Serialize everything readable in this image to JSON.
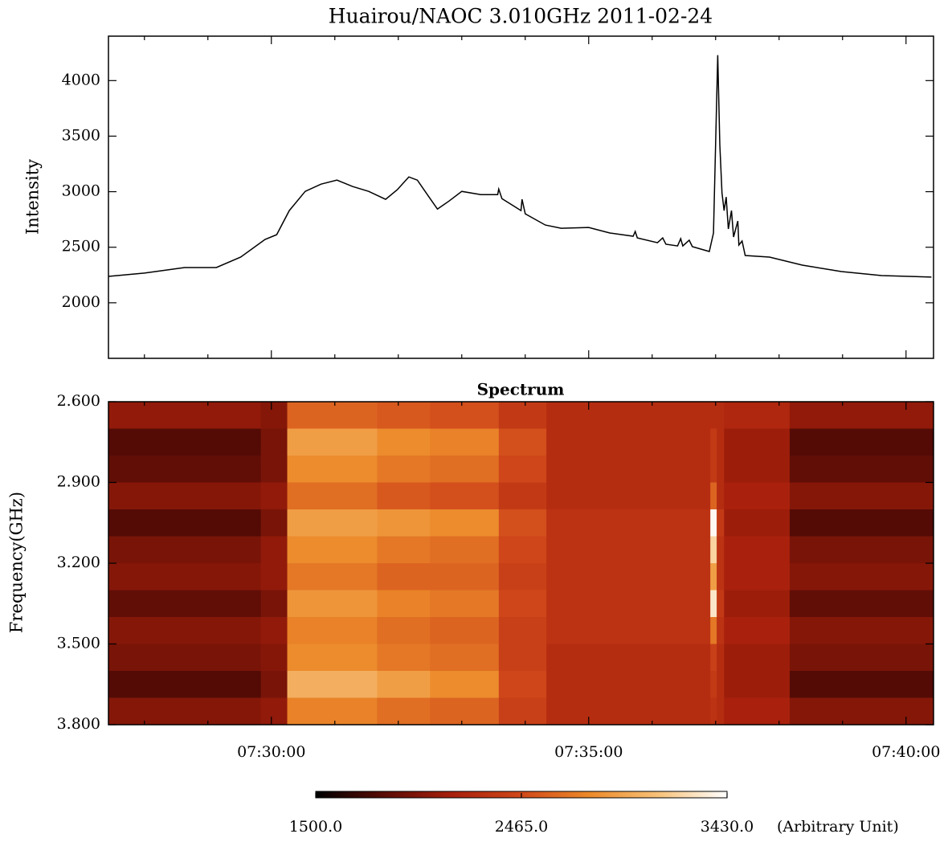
{
  "chart_data": [
    {
      "type": "line",
      "title": "Huairou/NAOC  3.010GHz  2011-02-24",
      "ylabel": "Intensity",
      "color": "#000000",
      "x": [
        26846,
        26880,
        26918,
        26948,
        26971,
        26994,
        27005,
        27017,
        27032,
        27047,
        27062,
        27077,
        27092,
        27108,
        27119,
        27130,
        27138,
        27149,
        27157,
        27168,
        27180,
        27198,
        27214,
        27215,
        27218,
        27236,
        27237,
        27240,
        27259,
        27274,
        27300,
        27320,
        27342,
        27344,
        27346,
        27365,
        27370,
        27373,
        27384,
        27387,
        27389,
        27395,
        27398,
        27414,
        27418,
        27422,
        27424,
        27426,
        27428,
        27430,
        27432,
        27435,
        27437,
        27441,
        27442,
        27445,
        27448,
        27471,
        27502,
        27539,
        27577,
        27624
      ],
      "values": [
        2238,
        2267,
        2317,
        2317,
        2411,
        2570,
        2613,
        2830,
        3003,
        3068,
        3104,
        3046,
        3003,
        2931,
        3017,
        3133,
        3104,
        2952,
        2844,
        2916,
        3003,
        2974,
        2974,
        3024,
        2938,
        2830,
        2931,
        2801,
        2700,
        2671,
        2678,
        2628,
        2599,
        2642,
        2584,
        2541,
        2584,
        2527,
        2512,
        2577,
        2512,
        2563,
        2505,
        2462,
        2628,
        4229,
        3421,
        2988,
        2830,
        2952,
        2664,
        2830,
        2592,
        2736,
        2520,
        2556,
        2426,
        2411,
        2339,
        2281,
        2245,
        2231
      ],
      "xlim": [
        26846,
        27626
      ],
      "xticks": [
        27000,
        27300,
        27600
      ],
      "xminorticks": [
        26880,
        26940,
        27060,
        27120,
        27180,
        27240,
        27360,
        27420,
        27480,
        27540
      ],
      "ylim": [
        1500,
        4400
      ],
      "yticks": [
        2000,
        2500,
        3000,
        3500,
        4000
      ]
    },
    {
      "type": "heatmap",
      "title": "Spectrum",
      "ylabel": "Frequency(GHz)",
      "xedges": [
        26846,
        26990,
        27015,
        27100,
        27150,
        27215,
        27260,
        27415,
        27421,
        27428,
        27490,
        27626
      ],
      "yedges": [
        2.6,
        2.7,
        2.8,
        2.9,
        3.0,
        3.1,
        3.2,
        3.3,
        3.4,
        3.5,
        3.6,
        3.7,
        3.8
      ],
      "z": [
        [
          2050,
          2000,
          2600,
          2550,
          2500,
          2350,
          2250,
          2250,
          2250,
          2200,
          2050
        ],
        [
          1800,
          1950,
          2900,
          2800,
          2750,
          2500,
          2250,
          2350,
          2250,
          2100,
          1800
        ],
        [
          1850,
          1950,
          2800,
          2700,
          2650,
          2450,
          2250,
          2350,
          2250,
          2100,
          1850
        ],
        [
          2000,
          2050,
          2650,
          2550,
          2500,
          2350,
          2250,
          2600,
          2250,
          2150,
          2000
        ],
        [
          1800,
          1950,
          2900,
          2850,
          2800,
          2500,
          2300,
          3400,
          2350,
          2100,
          1800
        ],
        [
          1950,
          2050,
          2800,
          2700,
          2650,
          2450,
          2300,
          3200,
          2300,
          2150,
          1950
        ],
        [
          2000,
          2050,
          2700,
          2600,
          2600,
          2400,
          2300,
          2900,
          2300,
          2150,
          2000
        ],
        [
          1850,
          1950,
          2850,
          2750,
          2700,
          2450,
          2300,
          3300,
          2350,
          2100,
          1850
        ],
        [
          2000,
          2050,
          2750,
          2650,
          2600,
          2400,
          2300,
          2700,
          2300,
          2150,
          2000
        ],
        [
          1950,
          2000,
          2800,
          2700,
          2650,
          2400,
          2250,
          2400,
          2250,
          2100,
          1950
        ],
        [
          1800,
          1950,
          3000,
          2900,
          2800,
          2450,
          2250,
          2350,
          2250,
          2100,
          1800
        ],
        [
          2000,
          2050,
          2750,
          2650,
          2600,
          2400,
          2250,
          2300,
          2250,
          2150,
          2000
        ]
      ],
      "xlim": [
        26846,
        27626
      ],
      "xticks": [
        {
          "value": 27000,
          "label": "07:30:00"
        },
        {
          "value": 27300,
          "label": "07:35:00"
        },
        {
          "value": 27600,
          "label": "07:40:00"
        }
      ],
      "xminorticks": [
        26880,
        26940,
        27060,
        27120,
        27180,
        27240,
        27360,
        27420,
        27480,
        27540
      ],
      "ylim": [
        2.6,
        3.8
      ],
      "y_reversed": true,
      "yticks": [
        {
          "value": 2.6,
          "label": "2.600"
        },
        {
          "value": 2.9,
          "label": "2.900"
        },
        {
          "value": 3.2,
          "label": "3.200"
        },
        {
          "value": 3.5,
          "label": "3.500"
        },
        {
          "value": 3.8,
          "label": "3.800"
        }
      ],
      "colorbar": {
        "range": [
          1500,
          3430
        ],
        "ticks": [
          {
            "value": 1500,
            "label": "1500.0"
          },
          {
            "value": 2465,
            "label": "2465.0"
          },
          {
            "value": 3430,
            "label": "3430.0"
          }
        ],
        "unit": "(Arbitrary Unit)",
        "colormap": [
          "#000000",
          "#5a0c06",
          "#a8200c",
          "#d0481a",
          "#ec8a2a",
          "#f7c27a",
          "#ffffff"
        ]
      }
    }
  ]
}
